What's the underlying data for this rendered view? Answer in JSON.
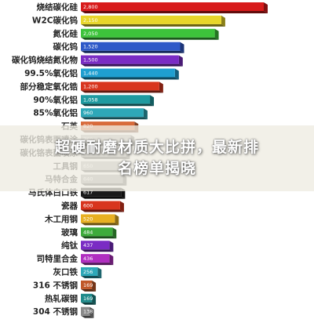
{
  "banner": {
    "line1": "超硬耐磨材质大比拼，最新排",
    "line2": "名榜单揭晓"
  },
  "chart_data": {
    "type": "bar",
    "orientation": "horizontal",
    "title": "",
    "xlabel": "",
    "ylabel": "",
    "xlim": [
      0,
      2800
    ],
    "grid": false,
    "legend": "none",
    "categories": [
      "烧结碳化硅",
      "W2C碳化钨",
      "氮化硅",
      "碳化钨",
      "碳化钨烧结氮化物",
      "99.5%氧化铝",
      "部分稳定氧化锆",
      "90%氧化铝",
      "85%氧化铝",
      "石英",
      "碳化钨表面喷涂",
      "碳化铬表面喷涂",
      "工具钢",
      "马特合金",
      "马氏体白口铁",
      "瓷器",
      "木工用钢",
      "玻璃",
      "纯钛",
      "司特里合金",
      "灰口铁",
      "316 不锈钢",
      "热轧碳钢",
      "304 不锈钢"
    ],
    "values": [
      2800,
      2150,
      2050,
      1520,
      1500,
      1440,
      1200,
      1058,
      960,
      820,
      760,
      690,
      650,
      640,
      617,
      600,
      520,
      484,
      437,
      436,
      256,
      169,
      169,
      138
    ],
    "value_labels": [
      "2,800",
      "2,150",
      "2,050",
      "1,520",
      "1,500",
      "1,440",
      "1,200",
      "1,058",
      "960",
      "820",
      "760",
      "690",
      "650",
      "640",
      "617",
      "600",
      "520",
      "484",
      "437",
      "436",
      "256",
      "169",
      "169",
      "138"
    ],
    "colors": [
      "#d81b1b",
      "#e8d62a",
      "#3dc33b",
      "#2e58c8",
      "#7a2cc4",
      "#1f9fd0",
      "#d8351e",
      "#1e9aa0",
      "#2ea8b8",
      "#d86a3a",
      "#b8b8b8",
      "#a8a8a8",
      "#b0b0b0",
      "#a0a0a0",
      "#1a1a1a",
      "#d8351e",
      "#e8b022",
      "#3dab3b",
      "#7a2cc4",
      "#b02ec0",
      "#2ea8b8",
      "#c05828",
      "#1e8a8a",
      "#8a8a8a"
    ]
  }
}
